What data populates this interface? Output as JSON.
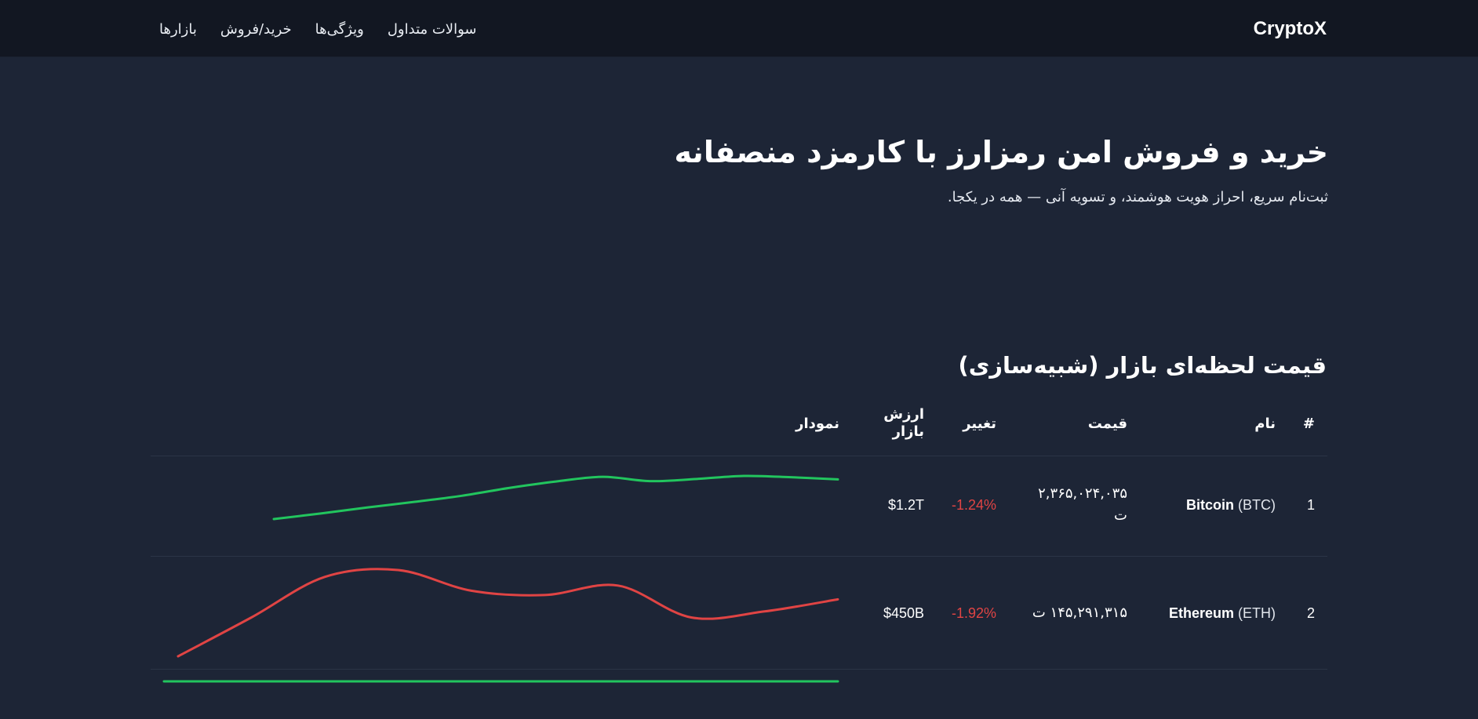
{
  "header": {
    "logo": "CryptoX",
    "nav": [
      {
        "label": "بازارها"
      },
      {
        "label": "خرید/فروش"
      },
      {
        "label": "ویژگی‌ها"
      },
      {
        "label": "سوالات متداول"
      }
    ]
  },
  "hero": {
    "title": "خرید و فروش امن رمزارز با کارمزد منصفانه",
    "subtitle": "ثبت‌نام سریع، احراز هویت هوشمند، و تسویه آنی — همه در یکجا."
  },
  "market": {
    "title": "قیمت لحظه‌ای بازار (شبیه‌سازی)",
    "columns": {
      "index": "#",
      "name": "نام",
      "price": "قیمت",
      "change": "تغییر",
      "mcap_line1": "ارزش",
      "mcap_line2": "بازار",
      "chart": "نمودار"
    },
    "rows": [
      {
        "index": "1",
        "name": "Bitcoin",
        "symbol": "(BTC)",
        "price_line1": "۲,۳۶۵,۰۲۴,۰۳۵",
        "price_line2": "ت",
        "change": "-1.24%",
        "market_cap": "$1.2T",
        "trend": "up",
        "sparkline": [
          0.0,
          0.13,
          0.27,
          0.4,
          0.54,
          0.72,
          0.87,
          0.98,
          0.88,
          0.93,
          1.0,
          0.97,
          0.92
        ]
      },
      {
        "index": "2",
        "name": "Ethereum",
        "symbol": "(ETH)",
        "price_line1": "۱۴۵,۲۹۱,۳۱۵ ت",
        "change": "-1.92%",
        "market_cap": "$450B",
        "trend": "down",
        "sparkline": [
          0.0,
          0.45,
          0.92,
          1.0,
          0.76,
          0.71,
          0.82,
          0.45,
          0.52,
          0.66
        ]
      }
    ],
    "partial_row_sparkline": [
      0.5,
      0.5,
      0.5,
      0.5,
      0.5
    ]
  },
  "colors": {
    "background": "#1d2536",
    "header_bg": "#121722",
    "positive": "#22c55e",
    "negative": "#e04444"
  }
}
